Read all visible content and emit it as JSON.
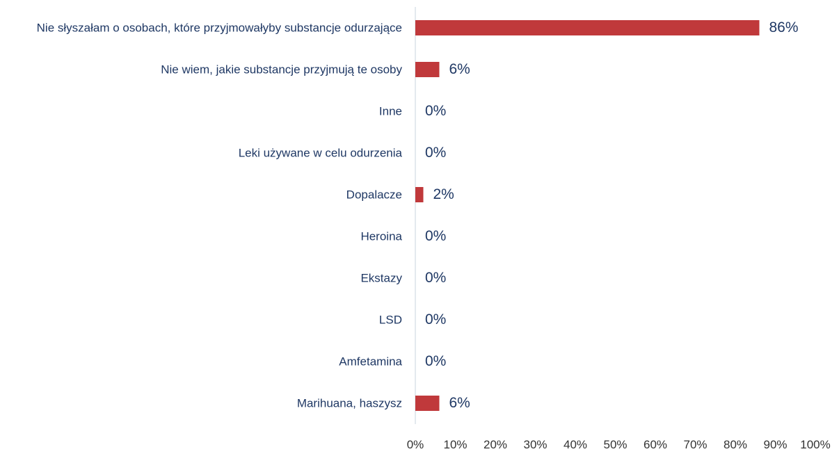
{
  "chart_data": {
    "type": "bar",
    "orientation": "horizontal",
    "categories": [
      "Nie słyszałam o osobach, które przyjmowałyby substancje odurzające",
      "Nie wiem, jakie substancje przyjmują te osoby",
      "Inne",
      "Leki używane w celu odurzenia",
      "Dopalacze",
      "Heroina",
      "Ekstazy",
      "LSD",
      "Amfetamina",
      "Marihuana, haszysz"
    ],
    "values": [
      86,
      6,
      0,
      0,
      2,
      0,
      0,
      0,
      0,
      6
    ],
    "value_labels": [
      "86%",
      "6%",
      "0%",
      "0%",
      "2%",
      "0%",
      "0%",
      "0%",
      "0%",
      "6%"
    ],
    "color": "#c0393b",
    "xlim": [
      0,
      100
    ],
    "xticks": [
      {
        "value": 0,
        "label": "0%"
      },
      {
        "value": 10,
        "label": "10%"
      },
      {
        "value": 20,
        "label": "20%"
      },
      {
        "value": 30,
        "label": "30%"
      },
      {
        "value": 40,
        "label": "40%"
      },
      {
        "value": 50,
        "label": "50%"
      },
      {
        "value": 60,
        "label": "60%"
      },
      {
        "value": 70,
        "label": "70%"
      },
      {
        "value": 80,
        "label": "80%"
      },
      {
        "value": 90,
        "label": "90%"
      },
      {
        "value": 100,
        "label": "100%"
      }
    ],
    "grid": false
  }
}
